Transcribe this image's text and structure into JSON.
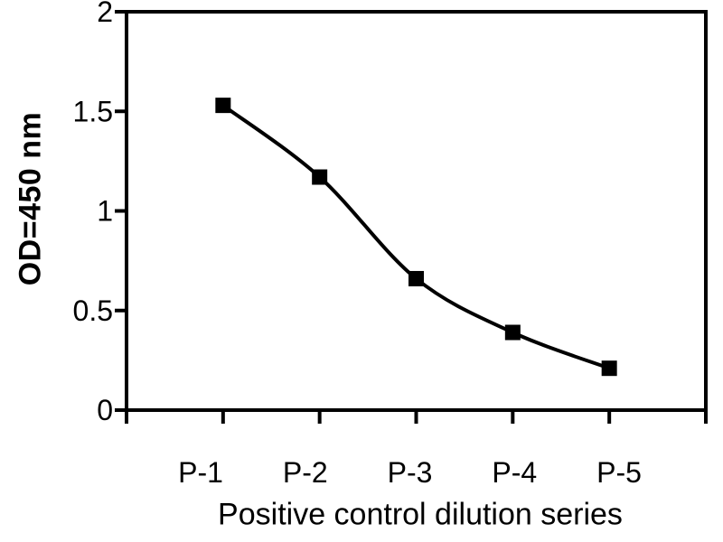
{
  "figure": {
    "background": "#ffffff",
    "ink_color": "#000000"
  },
  "chart_data": {
    "type": "line",
    "xlabel": "Positive control dilution series",
    "ylabel": "OD=450 nm",
    "categories": [
      "P-1",
      "P-2",
      "P-3",
      "P-4",
      "P-5"
    ],
    "values": [
      1.53,
      1.17,
      0.66,
      0.39,
      0.21
    ],
    "ylim": [
      0,
      2
    ],
    "yticks": [
      2,
      1.5,
      1,
      0.5,
      0
    ],
    "ytick_labels": [
      "2",
      "1.5",
      "1",
      "0.5",
      "0"
    ],
    "smooth": true,
    "marker": "square",
    "marker_color": "#000000",
    "line_color": "#000000",
    "grid": false,
    "legend": false
  }
}
